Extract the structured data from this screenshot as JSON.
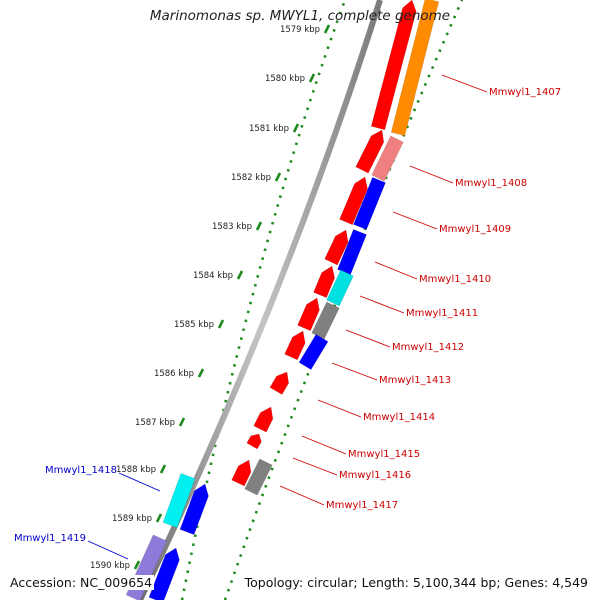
{
  "title": "Marinomonas sp. MWYL1, complete genome",
  "footer": {
    "accession": "Accession: NC_009654",
    "topology": "Topology: circular; Length: 5,100,344 bp; Genes: 4,549"
  },
  "colors": {
    "backbone": "#8c8c8c",
    "tick_dots": "#1f8a1f",
    "red_feature": "#ff0000",
    "label_red": "#cc0000",
    "label_blue": "#0000cc"
  },
  "scale_labels": [
    "1579 kbp",
    "1580 kbp",
    "1581 kbp",
    "1582 kbp",
    "1583 kbp",
    "1584 kbp",
    "1585 kbp",
    "1586 kbp",
    "1587 kbp",
    "1588 kbp",
    "1589 kbp",
    "1590 kbp"
  ],
  "gene_labels": [
    {
      "text": "Mmwyl1_1407",
      "color": "#cc0000"
    },
    {
      "text": "Mmwyl1_1408",
      "color": "#cc0000"
    },
    {
      "text": "Mmwyl1_1409",
      "color": "#cc0000"
    },
    {
      "text": "Mmwyl1_1410",
      "color": "#cc0000"
    },
    {
      "text": "Mmwyl1_1411",
      "color": "#cc0000"
    },
    {
      "text": "Mmwyl1_1412",
      "color": "#cc0000"
    },
    {
      "text": "Mmwyl1_1413",
      "color": "#cc0000"
    },
    {
      "text": "Mmwyl1_1414",
      "color": "#cc0000"
    },
    {
      "text": "Mmwyl1_1415",
      "color": "#cc0000"
    },
    {
      "text": "Mmwyl1_1416",
      "color": "#cc0000"
    },
    {
      "text": "Mmwyl1_1417",
      "color": "#cc0000"
    },
    {
      "text": "Mmwyl1_1418",
      "color": "#0000cc"
    },
    {
      "text": "Mmwyl1_1419",
      "color": "#0000cc"
    }
  ]
}
